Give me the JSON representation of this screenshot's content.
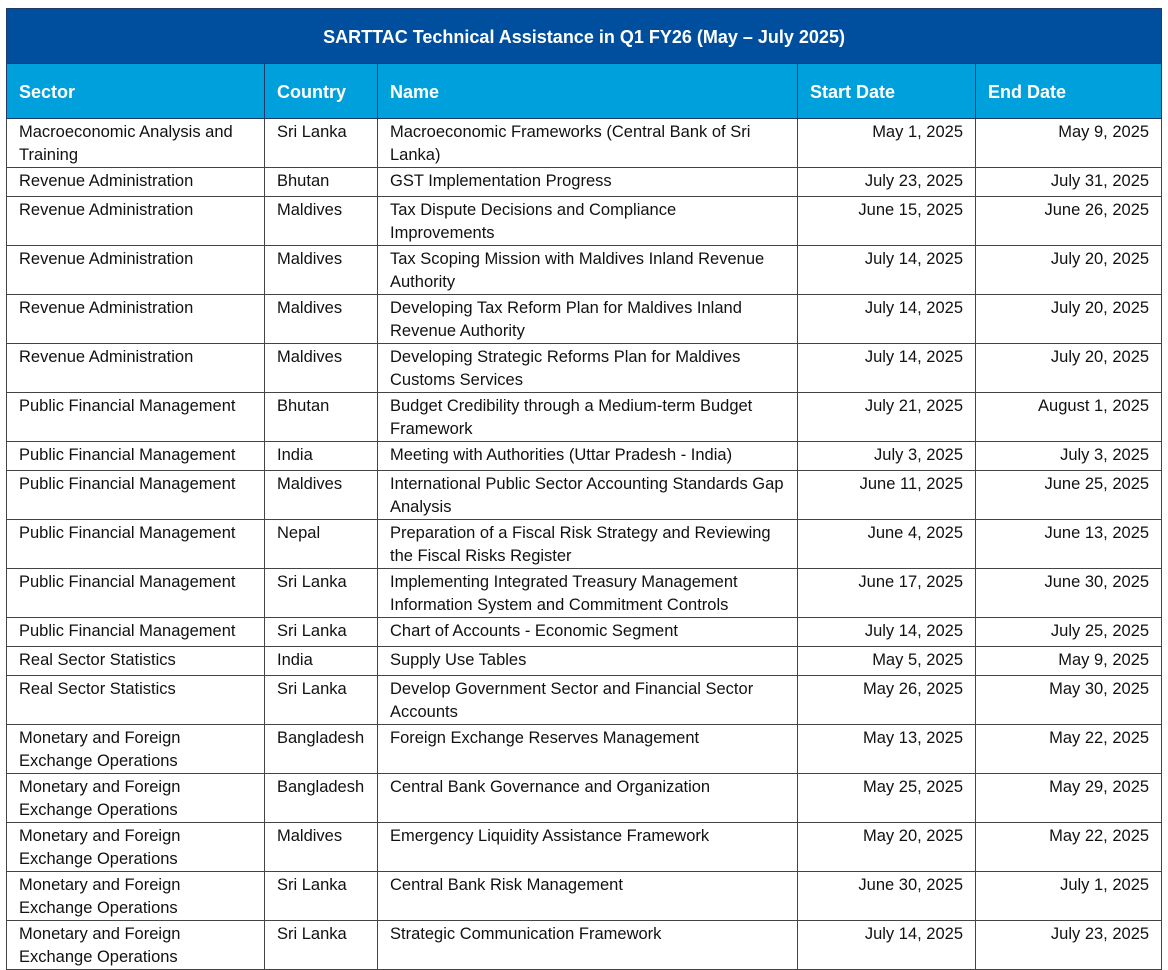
{
  "title": "SARTTAC Technical Assistance in Q1 FY26 (May – July 2025)",
  "table": {
    "header": [
      "Sector",
      "Country",
      "Name",
      "Start Date",
      "End Date"
    ],
    "rows": [
      [
        "Macroeconomic Analysis and Training",
        "Sri Lanka",
        "Macroeconomic Frameworks (Central Bank of Sri Lanka)",
        "May 1, 2025",
        "May 9, 2025"
      ],
      [
        "Revenue Administration",
        "Bhutan",
        "GST Implementation Progress",
        "July 23, 2025",
        "July 31, 2025"
      ],
      [
        "Revenue Administration",
        "Maldives",
        "Tax Dispute Decisions and Compliance Improvements",
        "June 15, 2025",
        "June 26, 2025"
      ],
      [
        "Revenue Administration",
        "Maldives",
        "Tax Scoping Mission with Maldives Inland Revenue Authority",
        "July 14, 2025",
        "July 20, 2025"
      ],
      [
        "Revenue Administration",
        "Maldives",
        "Developing Tax Reform Plan for Maldives Inland Revenue Authority",
        "July 14, 2025",
        "July 20, 2025"
      ],
      [
        "Revenue Administration",
        "Maldives",
        "Developing Strategic Reforms Plan for Maldives Customs Services",
        "July 14, 2025",
        "July 20, 2025"
      ],
      [
        "Public Financial Management",
        "Bhutan",
        "Budget Credibility through a Medium-term Budget Framework",
        "July 21, 2025",
        "August 1, 2025"
      ],
      [
        "Public Financial Management",
        "India",
        "Meeting with Authorities (Uttar Pradesh - India)",
        "July 3, 2025",
        "July 3, 2025"
      ],
      [
        "Public Financial Management",
        "Maldives",
        "International Public Sector Accounting Standards Gap Analysis",
        "June 11, 2025",
        "June 25, 2025"
      ],
      [
        "Public Financial Management",
        "Nepal",
        "Preparation of a Fiscal Risk Strategy and Reviewing the Fiscal Risks Register",
        "June 4, 2025",
        "June 13, 2025"
      ],
      [
        "Public Financial Management",
        "Sri Lanka",
        "Implementing Integrated Treasury Management Information System and Commitment Controls",
        "June 17, 2025",
        "June 30, 2025"
      ],
      [
        "Public Financial Management",
        "Sri Lanka",
        "Chart of Accounts - Economic Segment",
        "July 14, 2025",
        "July 25, 2025"
      ],
      [
        "Real Sector Statistics",
        "India",
        "Supply Use Tables",
        "May 5, 2025",
        "May 9, 2025"
      ],
      [
        "Real Sector Statistics",
        "Sri Lanka",
        "Develop Government Sector and Financial Sector Accounts",
        "May 26, 2025",
        "May 30, 2025"
      ],
      [
        "Monetary and Foreign Exchange Operations",
        "Bangladesh",
        "Foreign Exchange Reserves Management",
        "May 13, 2025",
        "May 22, 2025"
      ],
      [
        "Monetary and Foreign Exchange Operations",
        "Bangladesh",
        "Central Bank Governance and Organization",
        "May 25, 2025",
        "May 29, 2025"
      ],
      [
        "Monetary and Foreign Exchange Operations",
        "Maldives",
        "Emergency Liquidity Assistance Framework",
        "May 20, 2025",
        "May 22, 2025"
      ],
      [
        "Monetary and Foreign Exchange Operations",
        "Sri Lanka",
        "Central Bank Risk Management",
        "June 30, 2025",
        "July 1, 2025"
      ],
      [
        "Monetary and Foreign Exchange Operations",
        "Sri Lanka",
        "Strategic Communication Framework",
        "July 14, 2025",
        "July 23, 2025"
      ]
    ]
  }
}
